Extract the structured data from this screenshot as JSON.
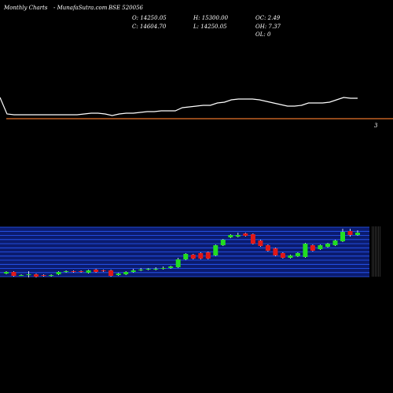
{
  "header": {
    "brand": "Monthly Charts",
    "site": "- MunafaSutra.com",
    "symbol": "BSE 520056",
    "open": "O: 14250.05",
    "high": "H: 15300.00",
    "oc": "OC: 2.49",
    "close": "C: 14604.70",
    "low": "L: 14250.05",
    "oh": "OH: 7.37",
    "ol": "OL: 0"
  },
  "colors": {
    "background": "#000000",
    "line": "#ffffff",
    "baseline": "#e8732a",
    "band_fill": "#0b1b6e",
    "band_grid": "#2a5cff",
    "up": "#22dd22",
    "down": "#e01818"
  },
  "chart_data": [
    {
      "type": "line",
      "panel": "upper",
      "title": "",
      "marker_label": "3",
      "x": [
        0,
        1,
        2,
        3,
        4,
        5,
        6,
        7,
        8,
        9,
        10,
        11,
        12,
        13,
        14,
        15,
        16,
        17,
        18,
        19,
        20,
        21,
        22,
        23,
        24,
        25,
        26,
        27,
        28,
        29,
        30,
        31,
        32,
        33,
        34,
        35,
        36,
        37,
        38,
        39,
        40,
        41,
        42,
        43,
        44,
        45,
        46,
        47,
        48,
        49,
        50,
        51
      ],
      "values": [
        124,
        145,
        146,
        146,
        146,
        146,
        146,
        146,
        146,
        146,
        146,
        146,
        145,
        144,
        144,
        145,
        147,
        145,
        144,
        144,
        143,
        142,
        142,
        141,
        141,
        141,
        137,
        136,
        135,
        134,
        134,
        131,
        130,
        127,
        126,
        126,
        126,
        127,
        129,
        131,
        133,
        135,
        135,
        134,
        131,
        131,
        131,
        130,
        127,
        124,
        125,
        125
      ]
    },
    {
      "type": "candlestick",
      "panel": "lower",
      "series": [
        {
          "o": 346,
          "c": 348,
          "h": 345,
          "l": 349,
          "dir": "up"
        },
        {
          "o": 346,
          "c": 351,
          "h": 345,
          "l": 352,
          "dir": "down"
        },
        {
          "o": 350,
          "c": 350,
          "h": 349,
          "l": 351,
          "dir": "up"
        },
        {
          "o": 349,
          "c": 350,
          "h": 345,
          "l": 353,
          "dir": "up"
        },
        {
          "o": 349,
          "c": 352,
          "h": 348,
          "l": 353,
          "dir": "down"
        },
        {
          "o": 350,
          "c": 351,
          "h": 349,
          "l": 352,
          "dir": "down"
        },
        {
          "o": 350,
          "c": 351,
          "h": 349,
          "l": 352,
          "dir": "up"
        },
        {
          "o": 346,
          "c": 349,
          "h": 345,
          "l": 350,
          "dir": "up"
        },
        {
          "o": 345,
          "c": 346,
          "h": 344,
          "l": 347,
          "dir": "up"
        },
        {
          "o": 345,
          "c": 346,
          "h": 344,
          "l": 347,
          "dir": "down"
        },
        {
          "o": 345,
          "c": 346,
          "h": 344,
          "l": 347,
          "dir": "down"
        },
        {
          "o": 344,
          "c": 347,
          "h": 343,
          "l": 348,
          "dir": "up"
        },
        {
          "o": 343,
          "c": 346,
          "h": 342,
          "l": 347,
          "dir": "down"
        },
        {
          "o": 344,
          "c": 345,
          "h": 343,
          "l": 346,
          "dir": "down"
        },
        {
          "o": 344,
          "c": 351,
          "h": 343,
          "l": 352,
          "dir": "down"
        },
        {
          "o": 348,
          "c": 350,
          "h": 347,
          "l": 351,
          "dir": "up"
        },
        {
          "o": 346,
          "c": 349,
          "h": 345,
          "l": 350,
          "dir": "up"
        },
        {
          "o": 344,
          "c": 346,
          "h": 342,
          "l": 347,
          "dir": "up"
        },
        {
          "o": 343,
          "c": 344,
          "h": 341,
          "l": 345,
          "dir": "up"
        },
        {
          "o": 342,
          "c": 343,
          "h": 341,
          "l": 344,
          "dir": "up"
        },
        {
          "o": 342,
          "c": 342,
          "h": 340,
          "l": 344,
          "dir": "up"
        },
        {
          "o": 341,
          "c": 342,
          "h": 339,
          "l": 343,
          "dir": "up"
        },
        {
          "o": 339,
          "c": 341,
          "h": 338,
          "l": 342,
          "dir": "up"
        },
        {
          "o": 330,
          "c": 340,
          "h": 328,
          "l": 341,
          "dir": "up"
        },
        {
          "o": 323,
          "c": 330,
          "h": 322,
          "l": 331,
          "dir": "up"
        },
        {
          "o": 324,
          "c": 329,
          "h": 323,
          "l": 330,
          "dir": "down"
        },
        {
          "o": 322,
          "c": 329,
          "h": 321,
          "l": 330,
          "dir": "down"
        },
        {
          "o": 321,
          "c": 329,
          "h": 320,
          "l": 330,
          "dir": "down"
        },
        {
          "o": 312,
          "c": 325,
          "h": 311,
          "l": 326,
          "dir": "up"
        },
        {
          "o": 305,
          "c": 312,
          "h": 304,
          "l": 313,
          "dir": "up"
        },
        {
          "o": 299,
          "c": 302,
          "h": 298,
          "l": 303,
          "dir": "up"
        },
        {
          "o": 299,
          "c": 301,
          "h": 296,
          "l": 302,
          "dir": "up"
        },
        {
          "o": 297,
          "c": 300,
          "h": 296,
          "l": 301,
          "dir": "down"
        },
        {
          "o": 298,
          "c": 310,
          "h": 297,
          "l": 311,
          "dir": "down"
        },
        {
          "o": 306,
          "c": 313,
          "h": 305,
          "l": 314,
          "dir": "down"
        },
        {
          "o": 312,
          "c": 319,
          "h": 311,
          "l": 320,
          "dir": "down"
        },
        {
          "o": 316,
          "c": 325,
          "h": 315,
          "l": 326,
          "dir": "down"
        },
        {
          "o": 322,
          "c": 328,
          "h": 321,
          "l": 329,
          "dir": "down"
        },
        {
          "o": 325,
          "c": 328,
          "h": 324,
          "l": 329,
          "dir": "up"
        },
        {
          "o": 322,
          "c": 326,
          "h": 321,
          "l": 327,
          "dir": "up"
        },
        {
          "o": 310,
          "c": 327,
          "h": 309,
          "l": 328,
          "dir": "up"
        },
        {
          "o": 312,
          "c": 319,
          "h": 311,
          "l": 320,
          "dir": "down"
        },
        {
          "o": 312,
          "c": 317,
          "h": 311,
          "l": 318,
          "dir": "up"
        },
        {
          "o": 310,
          "c": 314,
          "h": 309,
          "l": 315,
          "dir": "up"
        },
        {
          "o": 306,
          "c": 312,
          "h": 305,
          "l": 313,
          "dir": "up"
        },
        {
          "o": 295,
          "c": 307,
          "h": 291,
          "l": 308,
          "dir": "up"
        },
        {
          "o": 294,
          "c": 299,
          "h": 291,
          "l": 301,
          "dir": "down"
        },
        {
          "o": 296,
          "c": 299,
          "h": 293,
          "l": 300,
          "dir": "up"
        }
      ],
      "price_band": {
        "grid_lines": 13
      }
    }
  ]
}
